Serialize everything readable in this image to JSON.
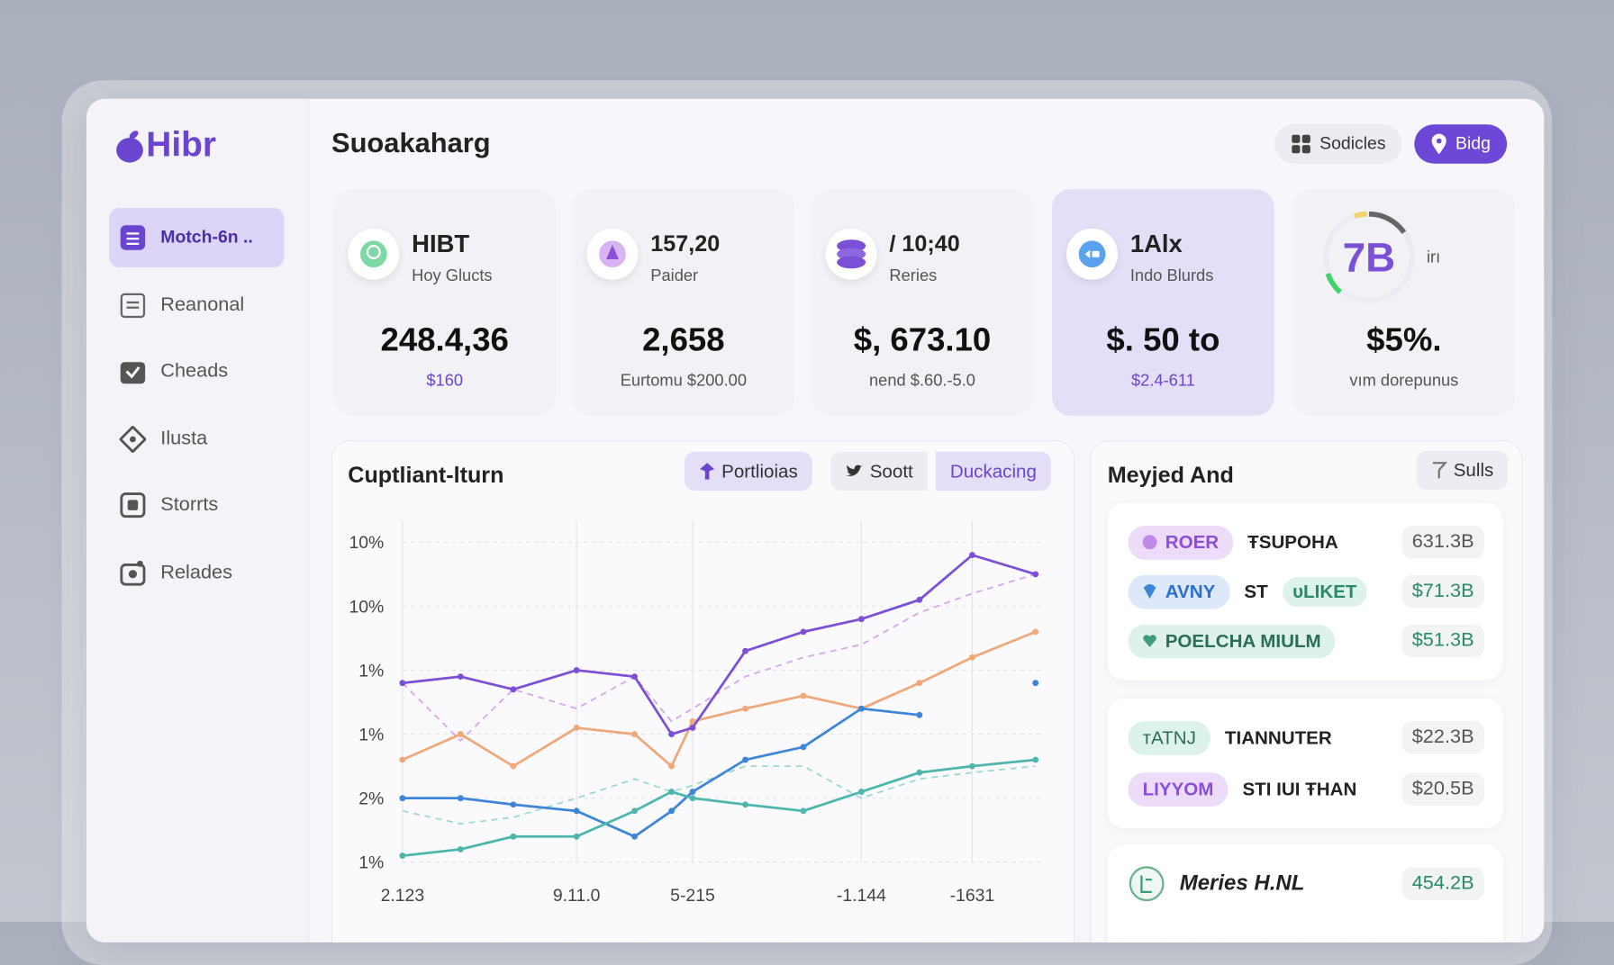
{
  "sidebar": {
    "logo": "Hibr",
    "nav": [
      "Motch-6n ..",
      "Reanonal",
      "Cheads",
      "Ilusta",
      "Storrts",
      "Relades"
    ]
  },
  "header": {
    "title": "Suoakaharg",
    "buttons": [
      "Sodicles",
      "Bidg"
    ]
  },
  "cards": [
    {
      "title": "HIBT",
      "subtitle": "Hoy Glucts",
      "value": "248.4,36",
      "note": "$160"
    },
    {
      "title": "157,20",
      "subtitle": "Paider",
      "value": "2,658",
      "note": "Eurtomu $200.00"
    },
    {
      "title": "/ 10;40",
      "subtitle": "Reries",
      "value": "$, 673.10",
      "note": "nend $.60.-5.0"
    },
    {
      "title": "1Alx",
      "subtitle": "Indo Blurds",
      "value": "$. 50 to",
      "note": "$2.4-611"
    },
    {
      "title": "7B",
      "subtitle": "irı",
      "value": "$5%.",
      "note": "vım dorepunus"
    }
  ],
  "chart_panel": {
    "title": "Cuptliant-lturn",
    "tabs": [
      "Portlioias",
      "Soott",
      "Duckacing"
    ]
  },
  "chart_data": {
    "type": "line",
    "x": [
      0,
      1.1,
      2.1,
      3.3,
      4.4,
      5.1,
      5.5,
      6.5,
      7.6,
      8.7,
      9.8,
      10.8,
      12
    ],
    "xlim": [
      0,
      12
    ],
    "xticks": [
      {
        "value": 0,
        "label": "2.123"
      },
      {
        "value": 3.3,
        "label": "9.11.0"
      },
      {
        "value": 5.5,
        "label": "5-215"
      },
      {
        "value": 8.7,
        "label": "-1.144"
      },
      {
        "value": 10.8,
        "label": "-1631"
      }
    ],
    "ylim": [
      0,
      5.5
    ],
    "yticks": [
      {
        "value": 0,
        "label": "1%"
      },
      {
        "value": 1,
        "label": "2%"
      },
      {
        "value": 2,
        "label": "1%"
      },
      {
        "value": 3,
        "label": "1%"
      },
      {
        "value": 4,
        "label": "10%"
      },
      {
        "value": 5,
        "label": "10%"
      }
    ],
    "grid": true,
    "series": [
      {
        "color": "#d7a7e8",
        "dashed": true,
        "values": [
          2.8,
          1.9,
          2.7,
          2.4,
          2.9,
          2.2,
          2.4,
          2.9,
          3.2,
          3.4,
          3.9,
          4.2,
          4.5
        ]
      },
      {
        "color": "#9dd9cf",
        "dashed": true,
        "values": [
          0.8,
          0.6,
          0.7,
          1.0,
          1.3,
          1.1,
          1.2,
          1.5,
          1.5,
          1.0,
          1.3,
          1.4,
          1.5
        ]
      },
      {
        "color": "#f0a77a",
        "values": [
          1.6,
          2.0,
          1.5,
          2.1,
          2.0,
          1.5,
          2.2,
          2.4,
          2.6,
          2.4,
          2.8,
          3.2,
          3.6
        ]
      },
      {
        "color": "#3d85d8",
        "values": [
          1.0,
          1.0,
          0.9,
          0.8,
          0.4,
          0.8,
          1.1,
          1.6,
          1.8,
          2.4,
          2.3,
          null,
          2.8
        ]
      },
      {
        "color": "#4db6ac",
        "values": [
          0.1,
          0.2,
          0.4,
          0.4,
          0.8,
          1.1,
          1.0,
          0.9,
          0.8,
          1.1,
          1.4,
          1.5,
          1.6
        ]
      },
      {
        "color": "#7b4fd6",
        "values": [
          2.8,
          2.9,
          2.7,
          3.0,
          2.9,
          2.0,
          2.1,
          3.3,
          3.6,
          3.8,
          4.1,
          4.8,
          4.5
        ]
      }
    ]
  },
  "list_panel": {
    "title": "Meyjed And",
    "button": "Sulls",
    "items": [
      {
        "tag": "ROER",
        "label": "ŦSUPOHA",
        "value": "631.3B"
      },
      {
        "tag": "AVNY",
        "label": "ST",
        "badge": "ᴜLIKET",
        "value": "$71.3B"
      },
      {
        "tag": "POELCHA MIULM",
        "value": "$51.3B"
      },
      {
        "tag": "ᴛATNJ",
        "label": "TIANNUTER",
        "value": "$22.3B"
      },
      {
        "tag": "LIYYOM",
        "label": "STI IUI ŦHAN",
        "value": "$20.5B"
      }
    ],
    "footer": {
      "label": "Meries H.NL",
      "value": "454.2B"
    }
  }
}
